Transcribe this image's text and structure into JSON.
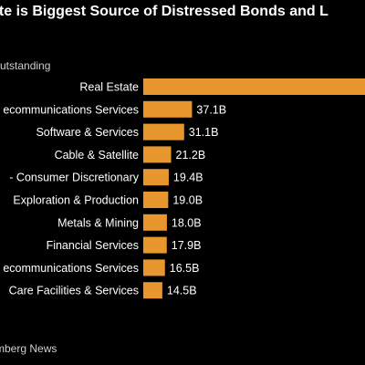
{
  "header": {
    "title": "ate is Biggest Source of Distressed Bonds and L",
    "subtitle": "utstanding"
  },
  "footer": {
    "source": "mberg News"
  },
  "colors": {
    "bar": "#e8962e",
    "background": "#000000",
    "text": "#ffffff"
  },
  "chart_data": {
    "type": "bar",
    "orientation": "horizontal",
    "categories": [
      "Real Estate",
      "ecommunications Services",
      "Software & Services",
      "Cable & Satellite",
      "- Consumer Discretionary",
      "Exploration & Production",
      "Metals & Mining",
      "Financial Services",
      "ecommunications Services",
      "Care Facilities & Services"
    ],
    "values": [
      null,
      37.1,
      31.1,
      21.2,
      19.4,
      19.0,
      18.0,
      17.9,
      16.5,
      14.5
    ],
    "value_labels": [
      "",
      "37.1B",
      "31.1B",
      "21.2B",
      "19.4B",
      "19.0B",
      "18.0B",
      "17.9B",
      "16.5B",
      "14.5B"
    ],
    "grid": false,
    "legend": "none"
  }
}
